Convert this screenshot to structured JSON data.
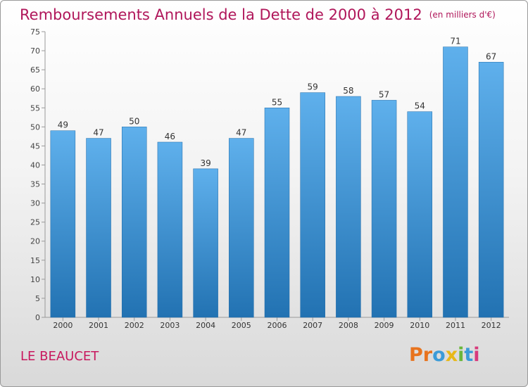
{
  "header": {
    "title": "Remboursements Annuels de la Dette de 2000 à 2012",
    "unit": "(en milliers d'€)"
  },
  "footer": {
    "commune": "LE BEAUCET",
    "logo": [
      "P",
      "r",
      "o",
      "x",
      "i",
      "t",
      "i"
    ]
  },
  "colors": {
    "title": "#b0165a",
    "commune": "#c8185e",
    "bar_top": "#5fb0ec",
    "bar_bottom": "#2272b2",
    "logo": [
      "#e8731d",
      "#e8731d",
      "#3b9bd8",
      "#e8b817",
      "#6ab73a",
      "#3b9bd8",
      "#d83a7c"
    ]
  },
  "chart_data": {
    "type": "bar",
    "title": "Remboursements Annuels de la Dette de 2000 à 2012",
    "ylabel": "",
    "xlabel": "",
    "categories": [
      "2000",
      "2001",
      "2002",
      "2003",
      "2004",
      "2005",
      "2006",
      "2007",
      "2008",
      "2009",
      "2010",
      "2011",
      "2012"
    ],
    "values": [
      49,
      47,
      50,
      46,
      39,
      47,
      55,
      59,
      58,
      57,
      54,
      71,
      67
    ],
    "ylim": [
      0,
      75
    ],
    "yticks": [
      0,
      5,
      10,
      15,
      20,
      25,
      30,
      35,
      40,
      45,
      50,
      55,
      60,
      65,
      70,
      75
    ],
    "grid": false,
    "data_labels": true
  }
}
